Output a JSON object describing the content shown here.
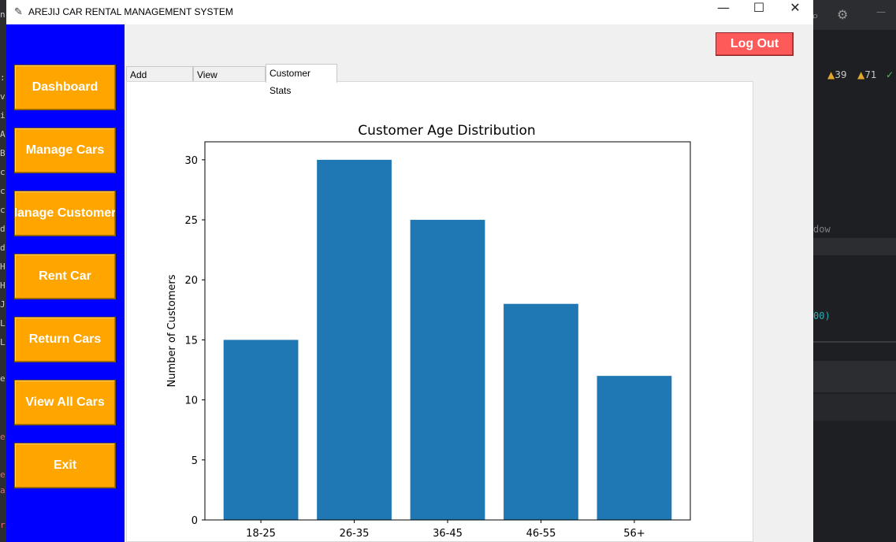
{
  "window": {
    "title": "AREJIJ CAR RENTAL MANAGEMENT SYSTEM",
    "controls": {
      "minimize": "—",
      "maximize": "☐",
      "close": "✕"
    }
  },
  "sidebar": {
    "items": [
      {
        "label": "Dashboard"
      },
      {
        "label": "Manage Cars"
      },
      {
        "label": "Manage Customers"
      },
      {
        "label": "Rent Car"
      },
      {
        "label": "Return Cars"
      },
      {
        "label": "View All Cars"
      },
      {
        "label": "Exit"
      }
    ]
  },
  "header": {
    "logout_label": "Log Out"
  },
  "tabs": [
    {
      "label": "Add Customer"
    },
    {
      "label": "View Customers"
    },
    {
      "label": "Customer Stats",
      "active": true
    }
  ],
  "colors": {
    "sidebar": "#0000ff",
    "nav_button": "#ffa500",
    "logout_button": "#ff5a5a",
    "bar": "#1f77b4"
  },
  "background_ide": {
    "warnings": "39",
    "weak_warnings": "71",
    "text_fragment_1": "dow",
    "text_fragment_2": "00)"
  },
  "chart_data": {
    "type": "bar",
    "title": "Customer Age Distribution",
    "xlabel": "",
    "ylabel": "Number of Customers",
    "categories": [
      "18-25",
      "26-35",
      "36-45",
      "46-55",
      "56+"
    ],
    "values": [
      15,
      30,
      25,
      18,
      12
    ],
    "ylim": [
      0,
      31.5
    ],
    "yticks": [
      0,
      5,
      10,
      15,
      20,
      25,
      30
    ],
    "grid": false
  }
}
